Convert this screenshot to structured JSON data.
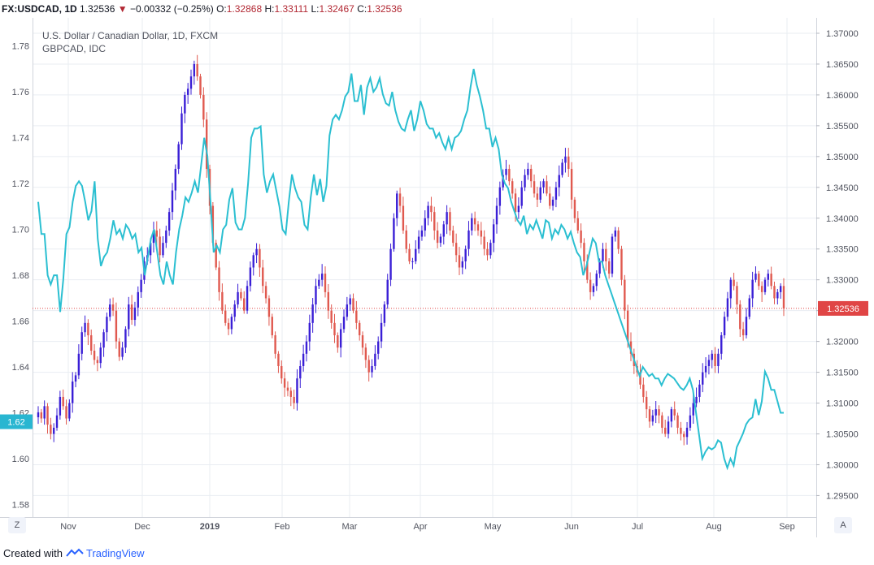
{
  "header": {
    "symbol": "FX:USDCAD, 1D",
    "last": "1.32536",
    "change_arrow": "▼",
    "change": "−0.00332 (−0.25%)",
    "o_label": "O:",
    "o_value": "1.32868",
    "h_label": "H:",
    "h_value": "1.33111",
    "l_label": "L:",
    "l_value": "1.32467",
    "c_label": "C:",
    "c_value": "1.32536"
  },
  "footer": {
    "created_with": "Created with",
    "brand": "TradingView"
  },
  "buttons": {
    "left": "Z",
    "right": "A"
  },
  "colors": {
    "up": "#3a1fd6",
    "down": "#e0594f",
    "line": "#2bbfd1",
    "grid": "#e9edf2",
    "price_tag": "#e04545",
    "left_tag": "#29b6d1"
  },
  "chart_data": {
    "type": "line",
    "title": "U.S. Dollar / Canadian Dollar, 1D, FXCM",
    "subtitle": "GBPCAD, IDC",
    "x_labels": [
      "Nov",
      "Dec",
      "2019",
      "Feb",
      "Mar",
      "Apr",
      "May",
      "Jun",
      "Jul",
      "Aug",
      "Sep"
    ],
    "left_axis": {
      "ticks": [
        "1.78",
        "1.76",
        "1.74",
        "1.72",
        "1.70",
        "1.68",
        "1.66",
        "1.64",
        "1.62",
        "1.60",
        "1.58"
      ],
      "ylim": [
        1.5745,
        1.7923
      ],
      "current_label": "1.62"
    },
    "right_axis": {
      "ticks": [
        "1.37000",
        "1.36500",
        "1.36000",
        "1.35500",
        "1.35000",
        "1.34500",
        "1.34000",
        "1.33500",
        "1.33000",
        "1.32500",
        "1.32000",
        "1.31500",
        "1.31000",
        "1.30500",
        "1.30000",
        "1.29500"
      ],
      "ylim": [
        1.2915,
        1.3725
      ],
      "current_label": "1.32536",
      "current_value": 1.32536
    },
    "series": [
      {
        "name": "FX:USDCAD",
        "kind": "candlestick",
        "axis": "right",
        "closes": [
          1.3085,
          1.3075,
          1.3095,
          1.3065,
          1.305,
          1.306,
          1.308,
          1.311,
          1.3095,
          1.3075,
          1.31,
          1.3135,
          1.3145,
          1.318,
          1.3215,
          1.323,
          1.321,
          1.3185,
          1.317,
          1.3165,
          1.319,
          1.3215,
          1.324,
          1.326,
          1.325,
          1.32,
          1.3175,
          1.319,
          1.322,
          1.326,
          1.3235,
          1.3255,
          1.328,
          1.33,
          1.333,
          1.334,
          1.336,
          1.338,
          1.337,
          1.334,
          1.336,
          1.338,
          1.341,
          1.3445,
          1.348,
          1.352,
          1.357,
          1.36,
          1.361,
          1.363,
          1.365,
          1.363,
          1.36,
          1.356,
          1.348,
          1.342,
          1.336,
          1.332,
          1.328,
          1.325,
          1.323,
          1.322,
          1.324,
          1.326,
          1.328,
          1.327,
          1.325,
          1.329,
          1.332,
          1.334,
          1.335,
          1.332,
          1.329,
          1.327,
          1.324,
          1.321,
          1.318,
          1.316,
          1.314,
          1.3125,
          1.312,
          1.311,
          1.31,
          1.314,
          1.316,
          1.318,
          1.32,
          1.323,
          1.326,
          1.329,
          1.33,
          1.331,
          1.328,
          1.325,
          1.323,
          1.321,
          1.319,
          1.322,
          1.324,
          1.326,
          1.327,
          1.325,
          1.323,
          1.321,
          1.319,
          1.317,
          1.315,
          1.316,
          1.318,
          1.32,
          1.323,
          1.326,
          1.33,
          1.335,
          1.34,
          1.344,
          1.342,
          1.338,
          1.335,
          1.333,
          1.333,
          1.335,
          1.337,
          1.338,
          1.34,
          1.342,
          1.341,
          1.338,
          1.336,
          1.337,
          1.339,
          1.341,
          1.338,
          1.336,
          1.334,
          1.332,
          1.333,
          1.335,
          1.338,
          1.34,
          1.339,
          1.338,
          1.337,
          1.335,
          1.334,
          1.336,
          1.339,
          1.342,
          1.345,
          1.347,
          1.348,
          1.346,
          1.344,
          1.341,
          1.342,
          1.345,
          1.347,
          1.348,
          1.346,
          1.344,
          1.343,
          1.345,
          1.346,
          1.344,
          1.342,
          1.343,
          1.345,
          1.347,
          1.349,
          1.35,
          1.348,
          1.343,
          1.34,
          1.338,
          1.336,
          1.333,
          1.33,
          1.328,
          1.329,
          1.331,
          1.333,
          1.335,
          1.333,
          1.331,
          1.337,
          1.338,
          1.335,
          1.33,
          1.325,
          1.32,
          1.318,
          1.316,
          1.315,
          1.313,
          1.311,
          1.309,
          1.307,
          1.308,
          1.309,
          1.308,
          1.306,
          1.305,
          1.307,
          1.309,
          1.308,
          1.306,
          1.305,
          1.3045,
          1.306,
          1.308,
          1.31,
          1.311,
          1.313,
          1.315,
          1.316,
          1.317,
          1.318,
          1.316,
          1.318,
          1.321,
          1.324,
          1.327,
          1.33,
          1.329,
          1.326,
          1.322,
          1.321,
          1.324,
          1.327,
          1.33,
          1.331,
          1.329,
          1.328,
          1.33,
          1.331,
          1.329,
          1.327,
          1.328,
          1.329,
          1.32536
        ]
      },
      {
        "name": "GBPCAD, IDC",
        "kind": "line",
        "axis": "left",
        "values": [
          1.712,
          1.698,
          1.698,
          1.68,
          1.676,
          1.68,
          1.68,
          1.664,
          1.678,
          1.698,
          1.701,
          1.712,
          1.719,
          1.721,
          1.719,
          1.712,
          1.704,
          1.708,
          1.721,
          1.696,
          1.684,
          1.688,
          1.69,
          1.696,
          1.704,
          1.698,
          1.7,
          1.696,
          1.702,
          1.7,
          1.696,
          1.698,
          1.69,
          1.692,
          1.68,
          1.688,
          1.696,
          1.7,
          1.69,
          1.68,
          1.676,
          1.686,
          1.68,
          1.676,
          1.69,
          1.7,
          1.706,
          1.714,
          1.712,
          1.716,
          1.721,
          1.716,
          1.728,
          1.74,
          1.732,
          1.712,
          1.69,
          1.693,
          1.69,
          1.7,
          1.702,
          1.713,
          1.718,
          1.703,
          1.7,
          1.7,
          1.705,
          1.72,
          1.74,
          1.744,
          1.744,
          1.745,
          1.724,
          1.716,
          1.721,
          1.724,
          1.717,
          1.71,
          1.7,
          1.698,
          1.712,
          1.724,
          1.718,
          1.714,
          1.712,
          1.702,
          1.7,
          1.714,
          1.724,
          1.715,
          1.722,
          1.712,
          1.719,
          1.741,
          1.748,
          1.75,
          1.748,
          1.752,
          1.758,
          1.76,
          1.768,
          1.756,
          1.756,
          1.763,
          1.75,
          1.762,
          1.766,
          1.76,
          1.762,
          1.766,
          1.759,
          1.755,
          1.754,
          1.76,
          1.752,
          1.747,
          1.744,
          1.743,
          1.748,
          1.752,
          1.743,
          1.748,
          1.756,
          1.752,
          1.746,
          1.744,
          1.744,
          1.74,
          1.742,
          1.738,
          1.735,
          1.74,
          1.735,
          1.74,
          1.741,
          1.743,
          1.748,
          1.752,
          1.762,
          1.77,
          1.763,
          1.758,
          1.752,
          1.744,
          1.744,
          1.736,
          1.74,
          1.735,
          1.724,
          1.72,
          1.718,
          1.712,
          1.708,
          1.704,
          1.702,
          1.706,
          1.698,
          1.702,
          1.7,
          1.704,
          1.7,
          1.696,
          1.704,
          1.703,
          1.696,
          1.7,
          1.698,
          1.702,
          1.7,
          1.696,
          1.699,
          1.694,
          1.69,
          1.688,
          1.68,
          1.684,
          1.69,
          1.696,
          1.694,
          1.686,
          1.686,
          1.68,
          1.676,
          1.672,
          1.668,
          1.664,
          1.66,
          1.656,
          1.652,
          1.648,
          1.644,
          1.64,
          1.636,
          1.64,
          1.638,
          1.636,
          1.637,
          1.635,
          1.635,
          1.632,
          1.635,
          1.637,
          1.636,
          1.635,
          1.633,
          1.631,
          1.63,
          1.632,
          1.635,
          1.63,
          1.62,
          1.61,
          1.6,
          1.603,
          1.605,
          1.604,
          1.605,
          1.608,
          1.607,
          1.6,
          1.596,
          1.6,
          1.597,
          1.605,
          1.608,
          1.611,
          1.615,
          1.617,
          1.618,
          1.626,
          1.619,
          1.625,
          1.638,
          1.635,
          1.63,
          1.63,
          1.625,
          1.62,
          1.62
        ]
      }
    ]
  }
}
